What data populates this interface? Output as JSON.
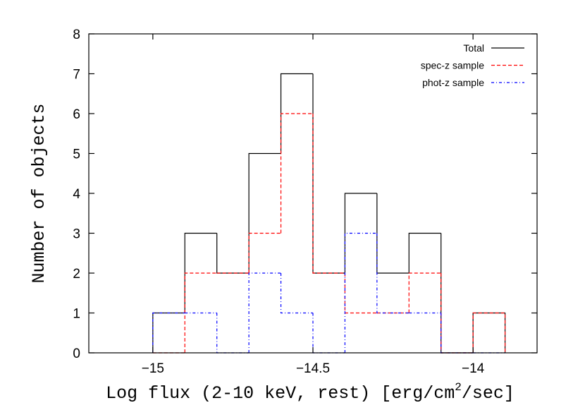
{
  "chart_data": {
    "type": "histogram",
    "xlabel": {
      "main": "Log flux (2-10 keV, rest) [erg/cm",
      "sup": "2",
      "tail": "/sec]"
    },
    "ylabel": "Number of objects",
    "xlim": [
      -15.2,
      -13.8
    ],
    "ylim": [
      0,
      8
    ],
    "xticks": [
      -15,
      -14.5,
      -14
    ],
    "xtick_labels": [
      "−15",
      "−14.5",
      "−14"
    ],
    "yticks": [
      0,
      1,
      2,
      3,
      4,
      5,
      6,
      7,
      8
    ],
    "ytick_labels": [
      "0",
      "1",
      "2",
      "3",
      "4",
      "5",
      "6",
      "7",
      "8"
    ],
    "grid": false,
    "legend_position": "top-right",
    "bin_edges": [
      -15.0,
      -14.9,
      -14.8,
      -14.7,
      -14.6,
      -14.5,
      -14.4,
      -14.3,
      -14.2,
      -14.1,
      -14.0,
      -13.9
    ],
    "series": [
      {
        "name": "Total",
        "color": "#000000",
        "dash": "solid",
        "values": [
          1,
          3,
          2,
          5,
          7,
          2,
          4,
          2,
          3,
          0,
          1
        ]
      },
      {
        "name": "spec-z sample",
        "color": "#ff0000",
        "dash": "dashed",
        "values": [
          0,
          2,
          2,
          3,
          6,
          2,
          1,
          1,
          2,
          0,
          1
        ]
      },
      {
        "name": "phot-z sample",
        "color": "#0000ff",
        "dash": "dash-dot",
        "values": [
          1,
          1,
          0,
          2,
          1,
          0,
          3,
          1,
          1,
          0,
          0
        ]
      }
    ]
  }
}
